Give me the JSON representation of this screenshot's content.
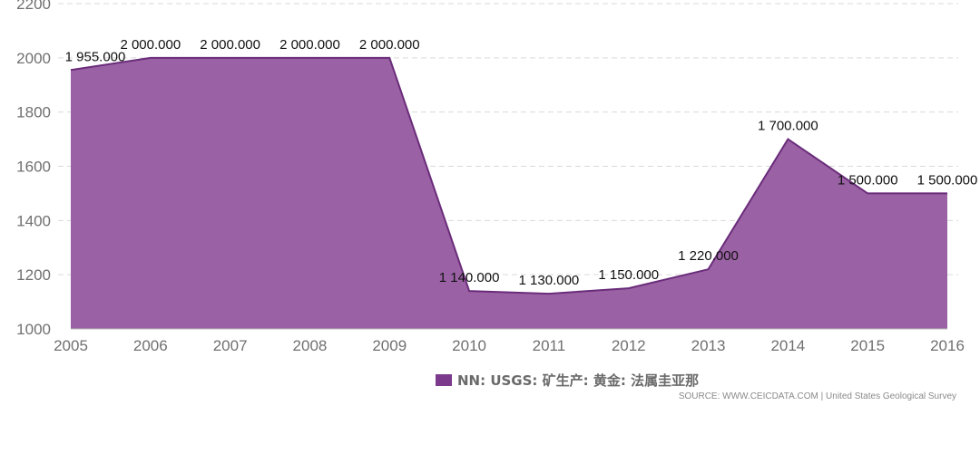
{
  "chart_data": {
    "type": "area",
    "x": [
      "2005",
      "2006",
      "2007",
      "2008",
      "2009",
      "2010",
      "2011",
      "2012",
      "2013",
      "2014",
      "2015",
      "2016"
    ],
    "series": [
      {
        "name": "NN: USGS: 矿生产: 黄金: 法属圭亚那",
        "values": [
          1955,
          2000,
          2000,
          2000,
          2000,
          1140,
          1130,
          1150,
          1220,
          1700,
          1500,
          1500
        ],
        "labels": [
          "1 955.000",
          "2 000.000",
          "2 000.000",
          "2 000.000",
          "2 000.000",
          "1 140.000",
          "1 130.000",
          "1 150.000",
          "1 220.000",
          "1 700.000",
          "1 500.000",
          "1 500.000"
        ],
        "color": "#7b3a8b"
      }
    ],
    "y_ticks": [
      "1000",
      "1200",
      "1400",
      "1600",
      "1800",
      "2000",
      "2200"
    ],
    "ylim": [
      1000,
      2200
    ],
    "grid": true
  },
  "legend": {
    "label": "NN: USGS: 矿生产: 黄金: 法属圭亚那"
  },
  "source": "SOURCE: WWW.CEICDATA.COM | United States Geological Survey"
}
